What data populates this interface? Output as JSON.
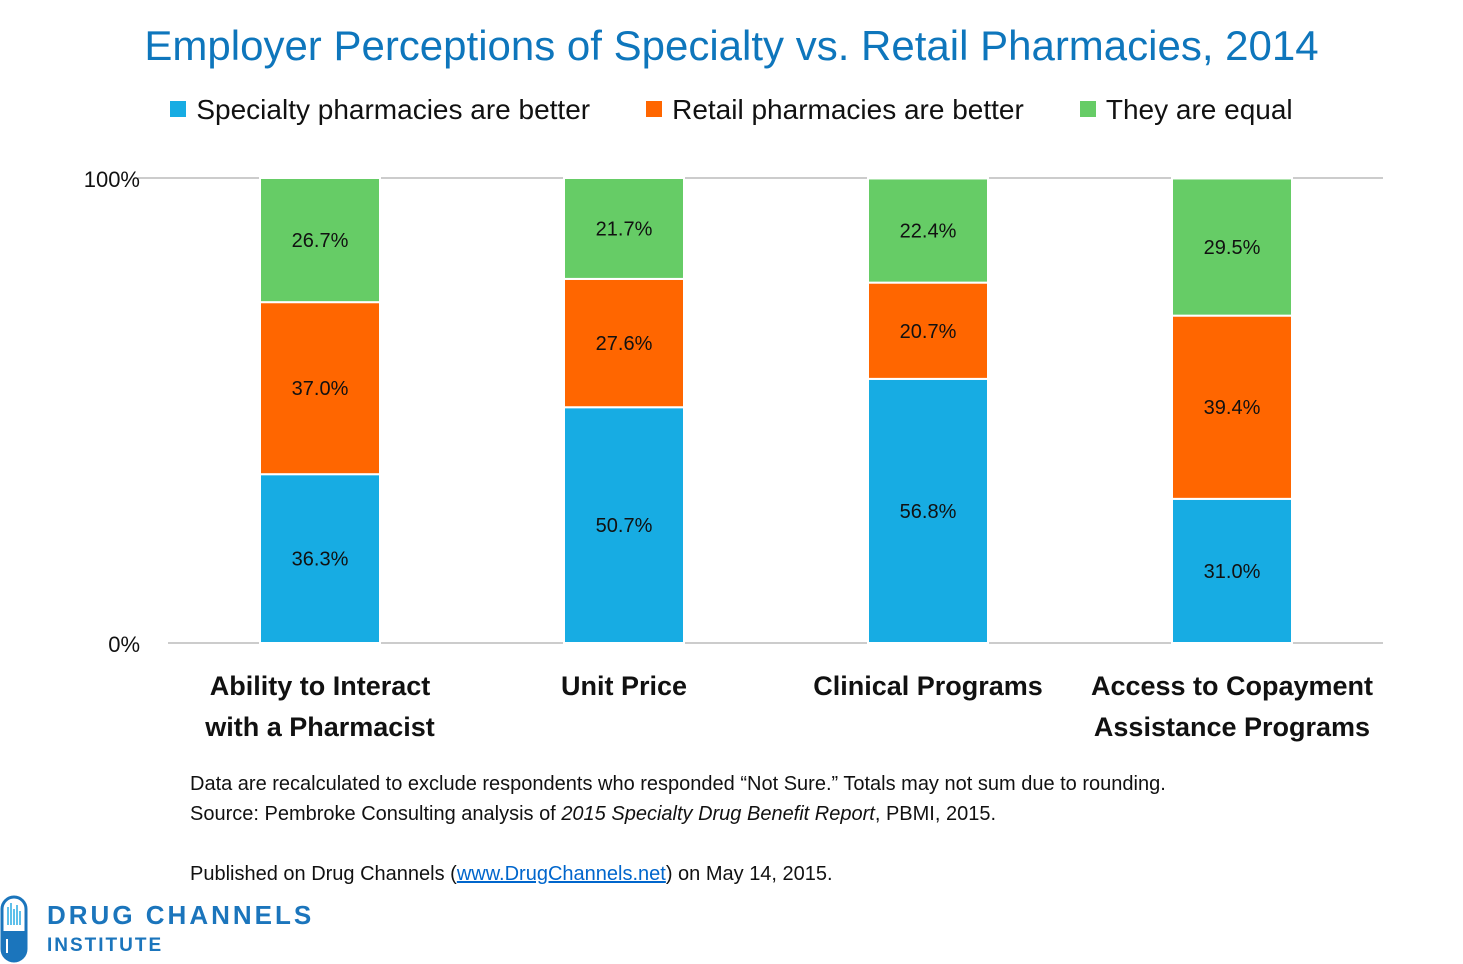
{
  "chart_data": {
    "type": "bar",
    "stacked": true,
    "title": "Employer Perceptions of Specialty vs. Retail Pharmacies, 2014",
    "categories": [
      "Ability to Interact with a Pharmacist",
      "Unit Price",
      "Clinical Programs",
      "Access to Copayment Assistance Programs"
    ],
    "category_lines": [
      [
        "Ability to Interact",
        "with a Pharmacist"
      ],
      [
        "Unit Price",
        ""
      ],
      [
        "Clinical Programs",
        ""
      ],
      [
        "Access to Copayment",
        "Assistance Programs"
      ]
    ],
    "series": [
      {
        "name": "Specialty pharmacies are better",
        "color": "#17ACE3",
        "values": [
          36.3,
          50.7,
          56.8,
          31.0
        ]
      },
      {
        "name": "Retail pharmacies are better",
        "color": "#FF6600",
        "values": [
          37.0,
          27.6,
          20.7,
          39.4
        ]
      },
      {
        "name": "They are equal",
        "color": "#66CC66",
        "values": [
          26.7,
          21.7,
          22.4,
          29.5
        ]
      }
    ],
    "ylim": [
      0,
      100
    ],
    "yticks": [
      "0%",
      "100%"
    ],
    "legend_position": "top",
    "grid": false
  },
  "notes": {
    "line1": "Data are recalculated to exclude respondents who responded “Not Sure.” Totals may not sum due to rounding.",
    "line2_pre": "Source: Pembroke Consulting analysis of ",
    "line2_italic": "2015 Specialty Drug Benefit Report",
    "line2_post": ", PBMI, 2015.",
    "line3_pre": "Published on Drug Channels (",
    "line3_link": "www.DrugChannels.net",
    "line3_post": ") on May 14, 2015."
  },
  "logo": {
    "line1": "DRUG CHANNELS",
    "line2": "INSTITUTE"
  }
}
